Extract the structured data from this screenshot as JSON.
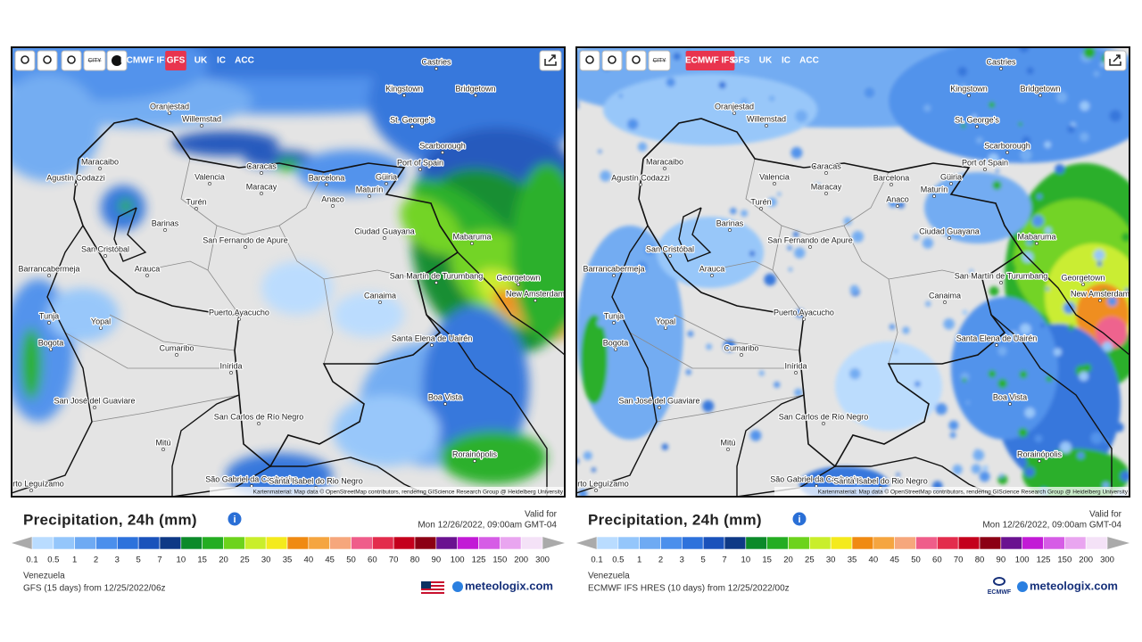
{
  "cities": [
    "Castries",
    "Kingstown",
    "Bridgetown",
    "Oranjestad",
    "Willemstad",
    "St. George's",
    "Scarborough",
    "Port of Spain",
    "Maracaibo",
    "Agustín Codazzi",
    "Caracas",
    "Valencia",
    "Barcelona",
    "Güiria",
    "Maracay",
    "Maturín",
    "Anaco",
    "Turén",
    "Barinas",
    "Ciudad Guayana",
    "San Fernando de Apure",
    "Mabaruma",
    "San Cristóbal",
    "Arauca",
    "Barrancabermeja",
    "San Martín de Turumbang",
    "Georgetown",
    "New Amsterdam",
    "Canaima",
    "Puerto Ayacucho",
    "Tunja",
    "Yopal",
    "Santa Elena de Uairén",
    "Bogota",
    "Cumaribo",
    "Inírida",
    "Boa Vista",
    "San José del Guaviare",
    "San Carlos de Río Negro",
    "Mitú",
    "Rorainópolis",
    "São Gabriel da Cachoeira",
    "Santa Isabel do Rio Negro",
    "Puerto Leguízamo"
  ],
  "attribution": "Kartenmaterial: Map data © OpenStreetMap contributors, rendering GIScience Research Group @ Heidelberg University",
  "legend": {
    "values": [
      0.1,
      0.5,
      1,
      2,
      3,
      5,
      7,
      10,
      15,
      20,
      25,
      30,
      35,
      40,
      45,
      50,
      60,
      70,
      80,
      90,
      100,
      125,
      150,
      200,
      300
    ],
    "colors": [
      "#b9dcff",
      "#94c6fb",
      "#6eaaf3",
      "#4b8fec",
      "#2d72dc",
      "#1a52bb",
      "#0e3986",
      "#0c8a2a",
      "#24ad22",
      "#6dd31c",
      "#c9ee2b",
      "#f4ea1c",
      "#f08a12",
      "#f5a540",
      "#f6a77c",
      "#ef5d8a",
      "#e32c4c",
      "#c4001c",
      "#8c0014",
      "#6a1290",
      "#c21ad6",
      "#d65ce6",
      "#e9a5f0",
      "#f4e2f7"
    ]
  },
  "panels": [
    {
      "toolbar": [
        "CITY",
        "ECMWF IFS",
        "GFS",
        "UK",
        "IC",
        "ACC"
      ],
      "active": "GFS",
      "title": "Precipitation, 24h (mm)",
      "valid_label": "Valid for",
      "valid_time": "Mon 12/26/2022, 09:00am GMT-04",
      "region": "Venezuela",
      "model_run": "GFS (15 days) from 12/25/2022/06z",
      "logo": "meteologix.com"
    },
    {
      "toolbar": [
        "CITY",
        "ECMWF IFS",
        "GFS",
        "UK",
        "IC",
        "ACC"
      ],
      "active": "ECMWF IFS",
      "title": "Precipitation, 24h (mm)",
      "valid_label": "Valid for",
      "valid_time": "Mon 12/26/2022, 09:00am GMT-04",
      "region": "Venezuela",
      "model_run": "ECMWF IFS HRES (10 days) from 12/25/2022/00z",
      "logo": "meteologix.com",
      "model_logo": "ECMWF"
    }
  ]
}
